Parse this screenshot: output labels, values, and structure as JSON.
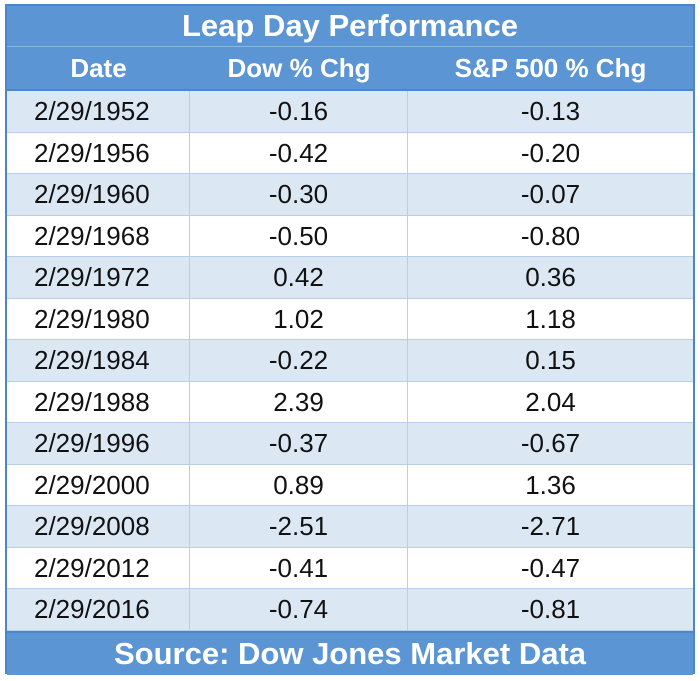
{
  "chart_data": {
    "type": "table",
    "title": "Leap Day Performance",
    "columns": [
      "Date",
      "Dow % Chg",
      "S&P 500 % Chg"
    ],
    "rows": [
      [
        "2/29/1952",
        "-0.16",
        "-0.13"
      ],
      [
        "2/29/1956",
        "-0.42",
        "-0.20"
      ],
      [
        "2/29/1960",
        "-0.30",
        "-0.07"
      ],
      [
        "2/29/1968",
        "-0.50",
        "-0.80"
      ],
      [
        "2/29/1972",
        "0.42",
        "0.36"
      ],
      [
        "2/29/1980",
        "1.02",
        "1.18"
      ],
      [
        "2/29/1984",
        "-0.22",
        "0.15"
      ],
      [
        "2/29/1988",
        "2.39",
        "2.04"
      ],
      [
        "2/29/1996",
        "-0.37",
        "-0.67"
      ],
      [
        "2/29/2000",
        "0.89",
        "1.36"
      ],
      [
        "2/29/2008",
        "-2.51",
        "-2.71"
      ],
      [
        "2/29/2012",
        "-0.41",
        "-0.47"
      ],
      [
        "2/29/2016",
        "-0.74",
        "-0.81"
      ]
    ],
    "source": "Source: Dow Jones Market Data"
  },
  "colors": {
    "header": "#5b95d3",
    "border": "#4a86c8",
    "stripe": "#dce7f4"
  }
}
